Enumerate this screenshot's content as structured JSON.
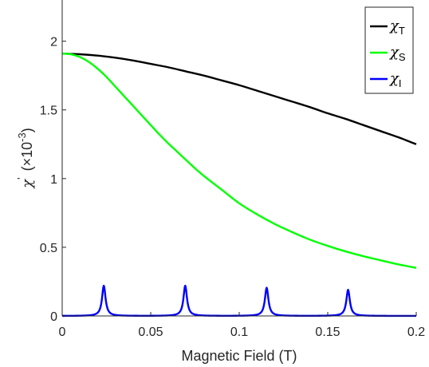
{
  "chart_data": {
    "type": "line",
    "xlabel": "Magnetic Field (T)",
    "ylabel": {
      "symbol": "χ",
      "prime": "'",
      "rest_open": "(×10",
      "exponent": "-3",
      "rest_close": ")"
    },
    "xlim": [
      0,
      0.2
    ],
    "ylim": [
      0,
      2.3
    ],
    "x_ticks": [
      0,
      0.05,
      0.1,
      0.15,
      0.2
    ],
    "x_tick_labels": [
      "0",
      "0.05",
      "0.1",
      "0.15",
      "0.2"
    ],
    "y_ticks": [
      0,
      0.5,
      1,
      1.5,
      2
    ],
    "y_tick_labels": [
      "0",
      "0.5",
      "1",
      "1.5",
      "2"
    ],
    "grid": false,
    "legend_position": "top-right",
    "series": [
      {
        "name": "χ_T",
        "legend_symbol": "χ",
        "legend_subscript": "T",
        "color": "#000000",
        "x": [
          0,
          0.01,
          0.02,
          0.03,
          0.04,
          0.05,
          0.06,
          0.07,
          0.08,
          0.09,
          0.1,
          0.11,
          0.12,
          0.13,
          0.14,
          0.15,
          0.16,
          0.17,
          0.18,
          0.19,
          0.2
        ],
        "y": [
          1.91,
          1.905,
          1.895,
          1.88,
          1.86,
          1.835,
          1.81,
          1.78,
          1.75,
          1.715,
          1.68,
          1.64,
          1.6,
          1.56,
          1.52,
          1.475,
          1.435,
          1.39,
          1.345,
          1.3,
          1.25
        ]
      },
      {
        "name": "χ_S",
        "legend_symbol": "χ",
        "legend_subscript": "S",
        "color": "#00ff00",
        "x": [
          0,
          0.005,
          0.01,
          0.015,
          0.02,
          0.025,
          0.03,
          0.035,
          0.04,
          0.045,
          0.05,
          0.055,
          0.06,
          0.065,
          0.07,
          0.075,
          0.08,
          0.09,
          0.1,
          0.11,
          0.12,
          0.13,
          0.14,
          0.15,
          0.16,
          0.17,
          0.18,
          0.19,
          0.2
        ],
        "y": [
          1.91,
          1.905,
          1.885,
          1.85,
          1.8,
          1.74,
          1.67,
          1.6,
          1.53,
          1.46,
          1.39,
          1.32,
          1.255,
          1.195,
          1.135,
          1.075,
          1.02,
          0.92,
          0.82,
          0.74,
          0.67,
          0.61,
          0.555,
          0.51,
          0.47,
          0.435,
          0.405,
          0.375,
          0.35
        ]
      },
      {
        "name": "χ_I",
        "legend_symbol": "χ",
        "legend_subscript": "I",
        "color": "#0000ff",
        "baseline": 0,
        "peaks": [
          {
            "x": 0.0235,
            "height": 0.22
          },
          {
            "x": 0.0695,
            "height": 0.22
          },
          {
            "x": 0.1155,
            "height": 0.205
          },
          {
            "x": 0.1615,
            "height": 0.19
          }
        ],
        "peak_half_width": 0.0012
      }
    ]
  }
}
